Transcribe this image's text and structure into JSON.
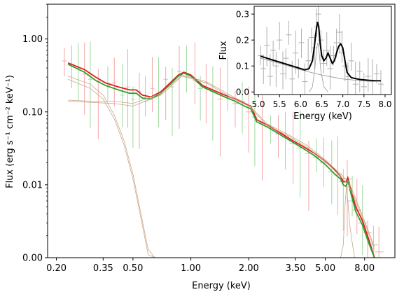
{
  "chart_data": [
    {
      "type": "line",
      "title": "",
      "xlabel": "Energy (keV)",
      "ylabel": "Flux (erg s⁻¹ cm⁻² keV⁻¹)",
      "xscale": "log",
      "yscale": "log",
      "xlim": [
        0.18,
        11.5
      ],
      "ylim": [
        0.001,
        3.0
      ],
      "x_ticks": [
        {
          "value": 0.2,
          "label": "0.20"
        },
        {
          "value": 0.35,
          "label": "0.35"
        },
        {
          "value": 0.5,
          "label": "0.50"
        },
        {
          "value": 1.0,
          "label": "1.00"
        },
        {
          "value": 2.0,
          "label": "2.00"
        },
        {
          "value": 3.5,
          "label": "3.50"
        },
        {
          "value": 5.0,
          "label": "5.00"
        },
        {
          "value": 8.0,
          "label": "8.00"
        }
      ],
      "y_ticks": [
        {
          "value": 0.001,
          "label": "0.00"
        },
        {
          "value": 0.01,
          "label": "0.01"
        },
        {
          "value": 0.1,
          "label": "0.10"
        },
        {
          "value": 1.0,
          "label": "1.00"
        }
      ],
      "grid": false,
      "series": [
        {
          "color": "#e41a1c",
          "style": "model-line",
          "x": [
            0.23,
            0.28,
            0.32,
            0.36,
            0.42,
            0.48,
            0.52,
            0.56,
            0.62,
            0.7,
            0.78,
            0.86,
            0.92,
            1.0,
            1.15,
            1.3,
            1.5,
            1.7,
            1.9,
            2.05,
            2.2,
            2.5,
            2.9,
            3.3,
            3.8,
            4.4,
            5.0,
            5.6,
            6.0,
            6.2,
            6.4,
            6.55,
            6.8,
            7.2,
            7.8,
            8.4,
            9.0
          ],
          "values": [
            0.47,
            0.38,
            0.3,
            0.25,
            0.22,
            0.2,
            0.2,
            0.17,
            0.16,
            0.19,
            0.25,
            0.32,
            0.35,
            0.32,
            0.23,
            0.2,
            0.17,
            0.15,
            0.13,
            0.12,
            0.078,
            0.066,
            0.052,
            0.042,
            0.034,
            0.027,
            0.021,
            0.016,
            0.013,
            0.011,
            0.011,
            0.0125,
            0.0085,
            0.005,
            0.0032,
            0.0018,
            0.001
          ]
        },
        {
          "color": "#2ca02c",
          "style": "model-line",
          "x": [
            0.23,
            0.28,
            0.32,
            0.36,
            0.42,
            0.48,
            0.52,
            0.56,
            0.62,
            0.7,
            0.78,
            0.86,
            0.92,
            1.0,
            1.15,
            1.3,
            1.5,
            1.7,
            1.9,
            2.05,
            2.2,
            2.5,
            2.9,
            3.3,
            3.8,
            4.4,
            5.0,
            5.6,
            6.0,
            6.2,
            6.4,
            6.55,
            6.8,
            7.2,
            7.8,
            8.4,
            9.0
          ],
          "values": [
            0.45,
            0.35,
            0.27,
            0.23,
            0.2,
            0.18,
            0.18,
            0.155,
            0.15,
            0.18,
            0.24,
            0.31,
            0.34,
            0.31,
            0.22,
            0.19,
            0.16,
            0.14,
            0.12,
            0.11,
            0.073,
            0.062,
            0.049,
            0.04,
            0.032,
            0.025,
            0.019,
            0.014,
            0.012,
            0.01,
            0.0095,
            0.0115,
            0.0075,
            0.0043,
            0.0028,
            0.0016,
            0.001
          ]
        },
        {
          "color": "#c9a78a",
          "style": "component",
          "x": [
            0.23,
            0.3,
            0.35,
            0.4,
            0.45,
            0.5,
            0.55,
            0.6,
            0.65
          ],
          "values": [
            0.31,
            0.24,
            0.17,
            0.09,
            0.04,
            0.014,
            0.004,
            0.0013,
            0.0008
          ]
        },
        {
          "color": "#c9a78a",
          "style": "component",
          "x": [
            0.23,
            0.3,
            0.35,
            0.4,
            0.45,
            0.5,
            0.55,
            0.6,
            0.65
          ],
          "values": [
            0.28,
            0.21,
            0.15,
            0.08,
            0.035,
            0.012,
            0.0035,
            0.0011,
            0.0007
          ]
        },
        {
          "color": "#c9a78a",
          "style": "component",
          "x": [
            0.23,
            0.3,
            0.4,
            0.5,
            0.7,
            0.9,
            1.2,
            1.6,
            2.0,
            2.5,
            3.2,
            4.0,
            5.0,
            6.0,
            6.6,
            7.2,
            8.0,
            9.0
          ],
          "values": [
            0.14,
            0.135,
            0.13,
            0.12,
            0.17,
            0.31,
            0.25,
            0.16,
            0.12,
            0.065,
            0.047,
            0.033,
            0.021,
            0.013,
            0.01,
            0.006,
            0.003,
            0.0013
          ]
        },
        {
          "color": "#c9a78a",
          "style": "component",
          "x": [
            0.23,
            0.3,
            0.4,
            0.5,
            0.7,
            0.9,
            1.2,
            1.6,
            2.0,
            2.5,
            3.2,
            4.0,
            5.0,
            6.0,
            6.6,
            7.2,
            8.0,
            9.0
          ],
          "values": [
            0.145,
            0.14,
            0.14,
            0.13,
            0.18,
            0.32,
            0.26,
            0.17,
            0.125,
            0.068,
            0.049,
            0.035,
            0.022,
            0.014,
            0.011,
            0.0065,
            0.0032,
            0.0014
          ]
        },
        {
          "color": "#c9a78a",
          "style": "component",
          "x": [
            6.0,
            6.2,
            6.35,
            6.45,
            6.55,
            6.7,
            6.9,
            7.1
          ],
          "values": [
            0.001,
            0.0015,
            0.006,
            0.0095,
            0.006,
            0.0028,
            0.0016,
            0.001
          ]
        }
      ],
      "data_points": [
        {
          "x": 0.22,
          "y": 0.5,
          "c": "r"
        },
        {
          "x": 0.24,
          "y": 0.45,
          "c": "r"
        },
        {
          "x": 0.26,
          "y": 0.4,
          "c": "g"
        },
        {
          "x": 0.28,
          "y": 0.33,
          "c": "r"
        },
        {
          "x": 0.3,
          "y": 0.28,
          "c": "g"
        },
        {
          "x": 0.33,
          "y": 0.26,
          "c": "r"
        },
        {
          "x": 0.37,
          "y": 0.23,
          "c": "g"
        },
        {
          "x": 0.4,
          "y": 0.25,
          "c": "r"
        },
        {
          "x": 0.44,
          "y": 0.17,
          "c": "g"
        },
        {
          "x": 0.47,
          "y": 0.22,
          "c": "r"
        },
        {
          "x": 0.5,
          "y": 0.15,
          "c": "g"
        },
        {
          "x": 0.54,
          "y": 0.19,
          "c": "r"
        },
        {
          "x": 0.58,
          "y": 0.14,
          "c": "g"
        },
        {
          "x": 0.63,
          "y": 0.21,
          "c": "r"
        },
        {
          "x": 0.68,
          "y": 0.17,
          "c": "g"
        },
        {
          "x": 0.74,
          "y": 0.28,
          "c": "r"
        },
        {
          "x": 0.8,
          "y": 0.22,
          "c": "g"
        },
        {
          "x": 0.87,
          "y": 0.36,
          "c": "r"
        },
        {
          "x": 0.95,
          "y": 0.3,
          "c": "g"
        },
        {
          "x": 1.05,
          "y": 0.27,
          "c": "r"
        },
        {
          "x": 1.12,
          "y": 0.21,
          "c": "g"
        },
        {
          "x": 1.2,
          "y": 0.25,
          "c": "r"
        },
        {
          "x": 1.3,
          "y": 0.19,
          "c": "g"
        },
        {
          "x": 1.42,
          "y": 0.15,
          "c": "r"
        },
        {
          "x": 1.55,
          "y": 0.17,
          "c": "g"
        },
        {
          "x": 1.7,
          "y": 0.13,
          "c": "r"
        },
        {
          "x": 1.85,
          "y": 0.14,
          "c": "g"
        },
        {
          "x": 2.0,
          "y": 0.1,
          "c": "r"
        },
        {
          "x": 2.15,
          "y": 0.085,
          "c": "g"
        },
        {
          "x": 2.35,
          "y": 0.07,
          "c": "r"
        },
        {
          "x": 2.6,
          "y": 0.06,
          "c": "g"
        },
        {
          "x": 2.85,
          "y": 0.05,
          "c": "r"
        },
        {
          "x": 3.1,
          "y": 0.045,
          "c": "g"
        },
        {
          "x": 3.4,
          "y": 0.037,
          "c": "r"
        },
        {
          "x": 3.7,
          "y": 0.032,
          "c": "g"
        },
        {
          "x": 4.1,
          "y": 0.027,
          "c": "r"
        },
        {
          "x": 4.5,
          "y": 0.024,
          "c": "g"
        },
        {
          "x": 4.9,
          "y": 0.02,
          "c": "r"
        },
        {
          "x": 5.4,
          "y": 0.015,
          "c": "g"
        },
        {
          "x": 5.8,
          "y": 0.014,
          "c": "r"
        },
        {
          "x": 6.2,
          "y": 0.011,
          "c": "g"
        },
        {
          "x": 6.5,
          "y": 0.012,
          "c": "r"
        },
        {
          "x": 6.9,
          "y": 0.006,
          "c": "g"
        },
        {
          "x": 7.3,
          "y": 0.0045,
          "c": "r"
        },
        {
          "x": 7.8,
          "y": 0.003,
          "c": "g"
        },
        {
          "x": 8.3,
          "y": 0.0022,
          "c": "r"
        },
        {
          "x": 8.9,
          "y": 0.0015,
          "c": "g"
        },
        {
          "x": 9.5,
          "y": 0.0012,
          "c": "r"
        }
      ]
    },
    {
      "type": "line",
      "title": "",
      "xlabel": "Energy (keV)",
      "ylabel": "Flux",
      "xlim": [
        4.9,
        8.15
      ],
      "ylim": [
        -0.01,
        0.33
      ],
      "x_ticks": [
        {
          "value": 5.0,
          "label": "5.0"
        },
        {
          "value": 5.5,
          "label": "5.5"
        },
        {
          "value": 6.0,
          "label": "6.0"
        },
        {
          "value": 6.5,
          "label": "6.5"
        },
        {
          "value": 7.0,
          "label": "7.0"
        },
        {
          "value": 7.5,
          "label": "7.5"
        },
        {
          "value": 8.0,
          "label": "8.0"
        }
      ],
      "y_ticks": [
        {
          "value": 0.0,
          "label": "0.0"
        },
        {
          "value": 0.1,
          "label": "0.1"
        },
        {
          "value": 0.2,
          "label": "0.2"
        },
        {
          "value": 0.3,
          "label": "0.3"
        }
      ],
      "grid": false,
      "series": [
        {
          "color": "#000000",
          "style": "model-line",
          "x": [
            5.05,
            5.3,
            5.6,
            5.9,
            6.1,
            6.2,
            6.28,
            6.33,
            6.37,
            6.4,
            6.43,
            6.46,
            6.5,
            6.55,
            6.6,
            6.65,
            6.7,
            6.75,
            6.8,
            6.85,
            6.9,
            6.95,
            7.0,
            7.05,
            7.1,
            7.2,
            7.4,
            7.6,
            7.8,
            7.9
          ],
          "values": [
            0.138,
            0.125,
            0.11,
            0.095,
            0.085,
            0.09,
            0.12,
            0.18,
            0.24,
            0.27,
            0.25,
            0.19,
            0.14,
            0.12,
            0.13,
            0.15,
            0.13,
            0.11,
            0.12,
            0.15,
            0.175,
            0.185,
            0.17,
            0.12,
            0.075,
            0.055,
            0.048,
            0.045,
            0.043,
            0.043
          ]
        },
        {
          "color": "#999999",
          "style": "component",
          "x": [
            6.2,
            6.28,
            6.34,
            6.38,
            6.41,
            6.44,
            6.48,
            6.55,
            6.65
          ],
          "values": [
            0.0,
            0.02,
            0.09,
            0.17,
            0.19,
            0.15,
            0.08,
            0.02,
            0.0
          ]
        },
        {
          "color": "#999999",
          "style": "component",
          "x": [
            5.05,
            5.5,
            6.0,
            6.5,
            7.0,
            7.5,
            7.9
          ],
          "values": [
            0.13,
            0.11,
            0.085,
            0.065,
            0.05,
            0.042,
            0.04
          ]
        }
      ],
      "data_points": [
        {
          "x": 5.05,
          "y": 0.14
        },
        {
          "x": 5.12,
          "y": 0.09
        },
        {
          "x": 5.2,
          "y": 0.18
        },
        {
          "x": 5.28,
          "y": 0.06
        },
        {
          "x": 5.35,
          "y": 0.16
        },
        {
          "x": 5.42,
          "y": 0.1
        },
        {
          "x": 5.5,
          "y": 0.2
        },
        {
          "x": 5.58,
          "y": 0.07
        },
        {
          "x": 5.65,
          "y": 0.13
        },
        {
          "x": 5.72,
          "y": 0.22
        },
        {
          "x": 5.8,
          "y": 0.05
        },
        {
          "x": 5.88,
          "y": 0.15
        },
        {
          "x": 5.95,
          "y": 0.09
        },
        {
          "x": 6.02,
          "y": 0.19
        },
        {
          "x": 6.1,
          "y": 0.04
        },
        {
          "x": 6.18,
          "y": 0.12
        },
        {
          "x": 6.26,
          "y": 0.21
        },
        {
          "x": 6.33,
          "y": 0.17
        },
        {
          "x": 6.38,
          "y": 0.25
        },
        {
          "x": 6.42,
          "y": 0.3
        },
        {
          "x": 6.48,
          "y": 0.2
        },
        {
          "x": 6.55,
          "y": 0.11
        },
        {
          "x": 6.62,
          "y": 0.16
        },
        {
          "x": 6.7,
          "y": 0.09
        },
        {
          "x": 6.78,
          "y": 0.14
        },
        {
          "x": 6.85,
          "y": 0.19
        },
        {
          "x": 6.92,
          "y": 0.23
        },
        {
          "x": 6.98,
          "y": 0.15
        },
        {
          "x": 7.05,
          "y": 0.1
        },
        {
          "x": 7.12,
          "y": 0.06
        },
        {
          "x": 7.2,
          "y": 0.12
        },
        {
          "x": 7.3,
          "y": 0.03
        },
        {
          "x": 7.4,
          "y": 0.08
        },
        {
          "x": 7.5,
          "y": 0.02
        },
        {
          "x": 7.6,
          "y": 0.06
        },
        {
          "x": 7.7,
          "y": 0.04
        },
        {
          "x": 7.8,
          "y": 0.07
        },
        {
          "x": 7.9,
          "y": 0.03
        }
      ]
    }
  ]
}
